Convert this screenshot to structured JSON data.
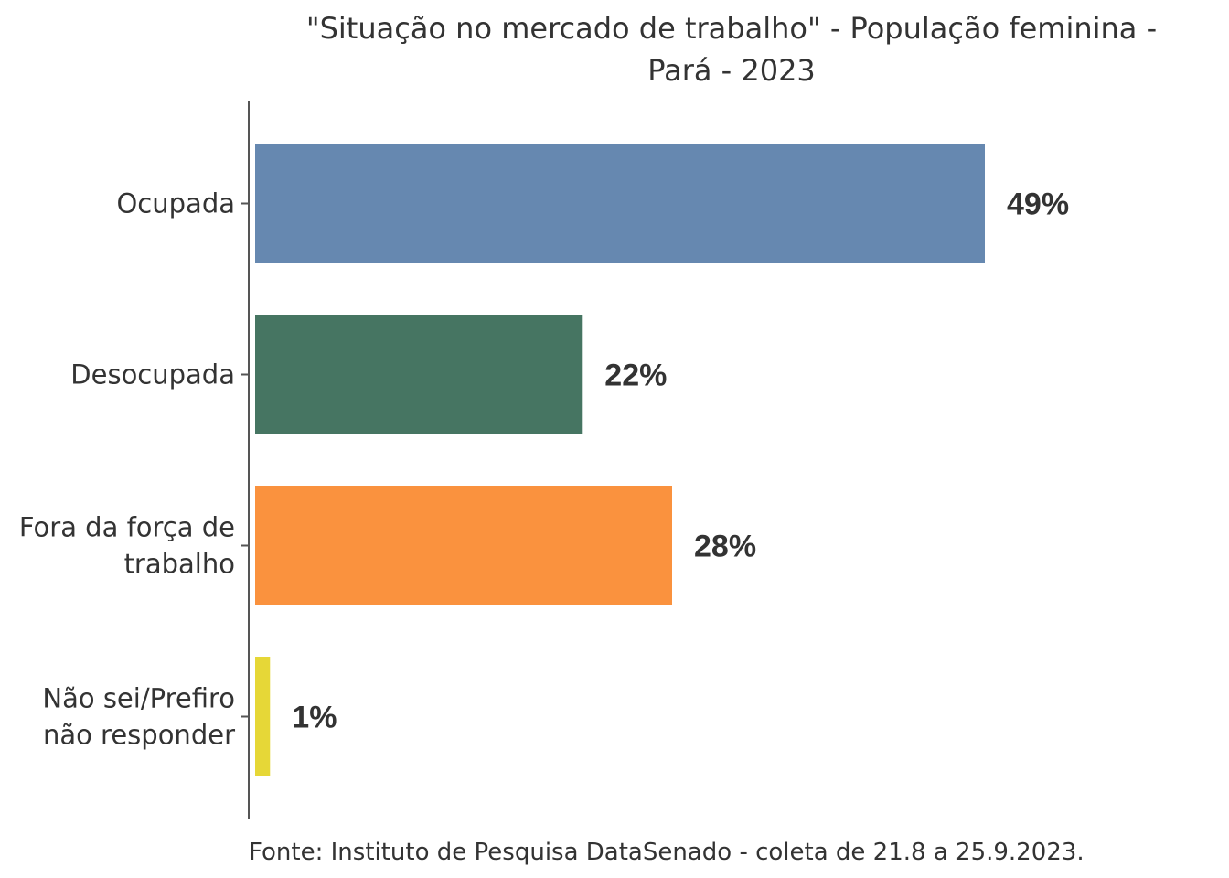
{
  "chart_data": {
    "type": "bar",
    "orientation": "horizontal",
    "title_lines": [
      "\"Situação no mercado de trabalho\" - População feminina -",
      "Pará - 2023"
    ],
    "categories": [
      [
        "Ocupada"
      ],
      [
        "Desocupada"
      ],
      [
        "Fora da força de",
        "trabalho"
      ],
      [
        "Não sei/Prefiro",
        "não responder"
      ]
    ],
    "values": [
      49,
      22,
      28,
      1
    ],
    "value_labels": [
      "49%",
      "22%",
      "28%",
      "1%"
    ],
    "colors": [
      "#6688B0",
      "#467562",
      "#FA923E",
      "#E6D737"
    ],
    "xlim": [
      0,
      56
    ],
    "xlabel": "",
    "ylabel": "",
    "grid": false,
    "caption": "Fonte: Instituto de Pesquisa DataSenado - coleta de 21.8 a 25.9.2023."
  }
}
